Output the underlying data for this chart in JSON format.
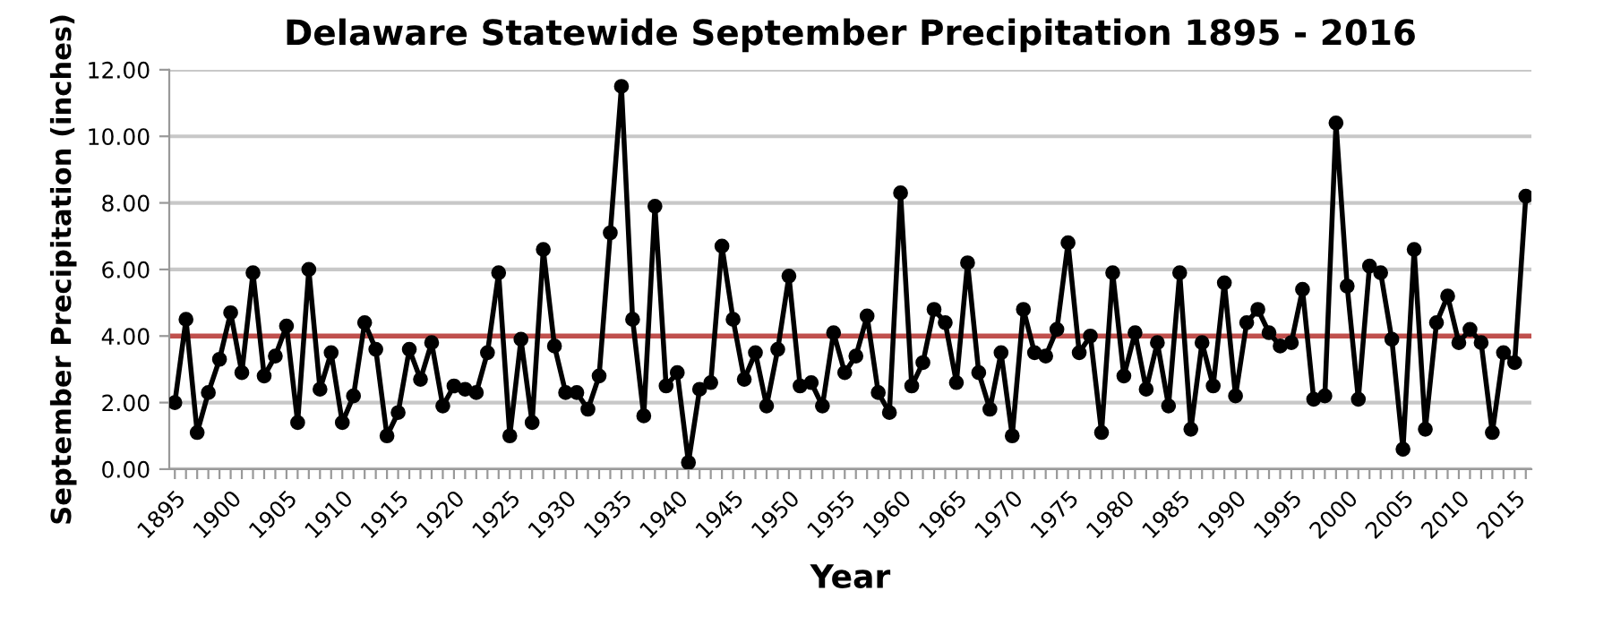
{
  "chart_data": {
    "type": "line",
    "title": "Delaware Statewide September Precipitation 1895 - 2016",
    "xlabel": "Year",
    "ylabel": "September Precipitation (inches)",
    "x": [
      1895,
      1896,
      1897,
      1898,
      1899,
      1900,
      1901,
      1902,
      1903,
      1904,
      1905,
      1906,
      1907,
      1908,
      1909,
      1910,
      1911,
      1912,
      1913,
      1914,
      1915,
      1916,
      1917,
      1918,
      1919,
      1920,
      1921,
      1922,
      1923,
      1924,
      1925,
      1926,
      1927,
      1928,
      1929,
      1930,
      1931,
      1932,
      1933,
      1934,
      1935,
      1936,
      1937,
      1938,
      1939,
      1940,
      1941,
      1942,
      1943,
      1944,
      1945,
      1946,
      1947,
      1948,
      1949,
      1950,
      1951,
      1952,
      1953,
      1954,
      1955,
      1956,
      1957,
      1958,
      1959,
      1960,
      1961,
      1962,
      1963,
      1964,
      1965,
      1966,
      1967,
      1968,
      1969,
      1970,
      1971,
      1972,
      1973,
      1974,
      1975,
      1976,
      1977,
      1978,
      1979,
      1980,
      1981,
      1982,
      1983,
      1984,
      1985,
      1986,
      1987,
      1988,
      1989,
      1990,
      1991,
      1992,
      1993,
      1994,
      1995,
      1996,
      1997,
      1998,
      1999,
      2000,
      2001,
      2002,
      2003,
      2004,
      2005,
      2006,
      2007,
      2008,
      2009,
      2010,
      2011,
      2012,
      2013,
      2014,
      2015,
      2016
    ],
    "series": [
      {
        "color": "#000000",
        "values": [
          2.0,
          4.5,
          1.1,
          2.3,
          3.3,
          4.7,
          2.9,
          5.9,
          2.8,
          3.4,
          4.3,
          1.4,
          6.0,
          2.4,
          3.5,
          1.4,
          2.2,
          4.4,
          3.6,
          1.0,
          1.7,
          3.6,
          2.7,
          3.8,
          1.9,
          2.5,
          2.4,
          2.3,
          3.5,
          5.9,
          1.0,
          3.9,
          1.4,
          6.6,
          3.7,
          2.3,
          2.3,
          1.8,
          2.8,
          7.1,
          11.5,
          4.5,
          1.6,
          7.9,
          2.5,
          2.9,
          0.2,
          2.4,
          2.6,
          6.7,
          4.5,
          2.7,
          3.5,
          1.9,
          3.6,
          5.8,
          2.5,
          2.6,
          1.9,
          4.1,
          2.9,
          3.4,
          4.6,
          2.3,
          1.7,
          8.3,
          2.5,
          3.2,
          4.8,
          4.4,
          2.6,
          6.2,
          2.9,
          1.8,
          3.5,
          1.0,
          4.8,
          3.5,
          3.4,
          4.2,
          6.8,
          3.5,
          4.0,
          1.1,
          5.9,
          2.8,
          4.1,
          2.4,
          3.8,
          1.9,
          5.9,
          1.2,
          3.8,
          2.5,
          5.6,
          2.2,
          4.4,
          4.8,
          4.1,
          3.7,
          3.8,
          5.4,
          2.1,
          2.2,
          10.4,
          5.5,
          2.1,
          6.1,
          5.9,
          3.9,
          0.6,
          6.6,
          1.2,
          4.4,
          5.2,
          3.8,
          4.2,
          3.8,
          1.1,
          3.5,
          3.2,
          8.2
        ]
      }
    ],
    "marker": "circle",
    "line_style": "solid",
    "grid": "y",
    "xlim": [
      1894.5,
      2016.5
    ],
    "xticks": [
      1895,
      {
        "value": 1896,
        "label": null
      },
      {
        "value": 1897,
        "label": null
      },
      {
        "value": 1898,
        "label": null
      },
      {
        "value": 1899,
        "label": null
      },
      1900,
      {
        "value": 1901,
        "label": null
      },
      {
        "value": 1902,
        "label": null
      },
      {
        "value": 1903,
        "label": null
      },
      {
        "value": 1904,
        "label": null
      },
      1905,
      {
        "value": 1906,
        "label": null
      },
      {
        "value": 1907,
        "label": null
      },
      {
        "value": 1908,
        "label": null
      },
      {
        "value": 1909,
        "label": null
      },
      1910,
      {
        "value": 1911,
        "label": null
      },
      {
        "value": 1912,
        "label": null
      },
      {
        "value": 1913,
        "label": null
      },
      {
        "value": 1914,
        "label": null
      },
      1915,
      {
        "value": 1916,
        "label": null
      },
      {
        "value": 1917,
        "label": null
      },
      {
        "value": 1918,
        "label": null
      },
      {
        "value": 1919,
        "label": null
      },
      1920,
      {
        "value": 1921,
        "label": null
      },
      {
        "value": 1922,
        "label": null
      },
      {
        "value": 1923,
        "label": null
      },
      {
        "value": 1924,
        "label": null
      },
      1925,
      {
        "value": 1926,
        "label": null
      },
      {
        "value": 1927,
        "label": null
      },
      {
        "value": 1928,
        "label": null
      },
      {
        "value": 1929,
        "label": null
      },
      1930,
      {
        "value": 1931,
        "label": null
      },
      {
        "value": 1932,
        "label": null
      },
      {
        "value": 1933,
        "label": null
      },
      {
        "value": 1934,
        "label": null
      },
      1935,
      {
        "value": 1936,
        "label": null
      },
      {
        "value": 1937,
        "label": null
      },
      {
        "value": 1938,
        "label": null
      },
      {
        "value": 1939,
        "label": null
      },
      1940,
      {
        "value": 1941,
        "label": null
      },
      {
        "value": 1942,
        "label": null
      },
      {
        "value": 1943,
        "label": null
      },
      {
        "value": 1944,
        "label": null
      },
      1945,
      {
        "value": 1946,
        "label": null
      },
      {
        "value": 1947,
        "label": null
      },
      {
        "value": 1948,
        "label": null
      },
      {
        "value": 1949,
        "label": null
      },
      1950,
      {
        "value": 1951,
        "label": null
      },
      {
        "value": 1952,
        "label": null
      },
      {
        "value": 1953,
        "label": null
      },
      {
        "value": 1954,
        "label": null
      },
      1955,
      {
        "value": 1956,
        "label": null
      },
      {
        "value": 1957,
        "label": null
      },
      {
        "value": 1958,
        "label": null
      },
      {
        "value": 1959,
        "label": null
      },
      1960,
      {
        "value": 1961,
        "label": null
      },
      {
        "value": 1962,
        "label": null
      },
      {
        "value": 1963,
        "label": null
      },
      {
        "value": 1964,
        "label": null
      },
      1965,
      {
        "value": 1966,
        "label": null
      },
      {
        "value": 1967,
        "label": null
      },
      {
        "value": 1968,
        "label": null
      },
      {
        "value": 1969,
        "label": null
      },
      1970,
      {
        "value": 1971,
        "label": null
      },
      {
        "value": 1972,
        "label": null
      },
      {
        "value": 1973,
        "label": null
      },
      {
        "value": 1974,
        "label": null
      },
      1975,
      {
        "value": 1976,
        "label": null
      },
      {
        "value": 1977,
        "label": null
      },
      {
        "value": 1978,
        "label": null
      },
      {
        "value": 1979,
        "label": null
      },
      1980,
      {
        "value": 1981,
        "label": null
      },
      {
        "value": 1982,
        "label": null
      },
      {
        "value": 1983,
        "label": null
      },
      {
        "value": 1984,
        "label": null
      },
      1985,
      {
        "value": 1986,
        "label": null
      },
      {
        "value": 1987,
        "label": null
      },
      {
        "value": 1988,
        "label": null
      },
      {
        "value": 1989,
        "label": null
      },
      1990,
      {
        "value": 1991,
        "label": null
      },
      {
        "value": 1992,
        "label": null
      },
      {
        "value": 1993,
        "label": null
      },
      {
        "value": 1994,
        "label": null
      },
      1995,
      {
        "value": 1996,
        "label": null
      },
      {
        "value": 1997,
        "label": null
      },
      {
        "value": 1998,
        "label": null
      },
      {
        "value": 1999,
        "label": null
      },
      2000,
      {
        "value": 2001,
        "label": null
      },
      {
        "value": 2002,
        "label": null
      },
      {
        "value": 2003,
        "label": null
      },
      {
        "value": 2004,
        "label": null
      },
      2005,
      {
        "value": 2006,
        "label": null
      },
      {
        "value": 2007,
        "label": null
      },
      {
        "value": 2008,
        "label": null
      },
      {
        "value": 2009,
        "label": null
      },
      2010,
      {
        "value": 2011,
        "label": null
      },
      {
        "value": 2012,
        "label": null
      },
      {
        "value": 2013,
        "label": null
      },
      {
        "value": 2014,
        "label": null
      },
      2015,
      {
        "value": 2016,
        "label": null
      }
    ],
    "ylim": [
      0,
      12
    ],
    "yticks": [
      {
        "value": 0,
        "label": "0.00"
      },
      {
        "value": 2,
        "label": "2.00"
      },
      {
        "value": 4,
        "label": "4.00"
      },
      {
        "value": 6,
        "label": "6.00"
      },
      {
        "value": 8,
        "label": "8.00"
      },
      {
        "value": 10,
        "label": "10.00"
      },
      {
        "value": 12,
        "label": "12.00"
      }
    ],
    "ref_lines": [
      {
        "axis": "y",
        "value": 4.0,
        "color": "#c0504d",
        "line_style": "solid"
      }
    ]
  }
}
